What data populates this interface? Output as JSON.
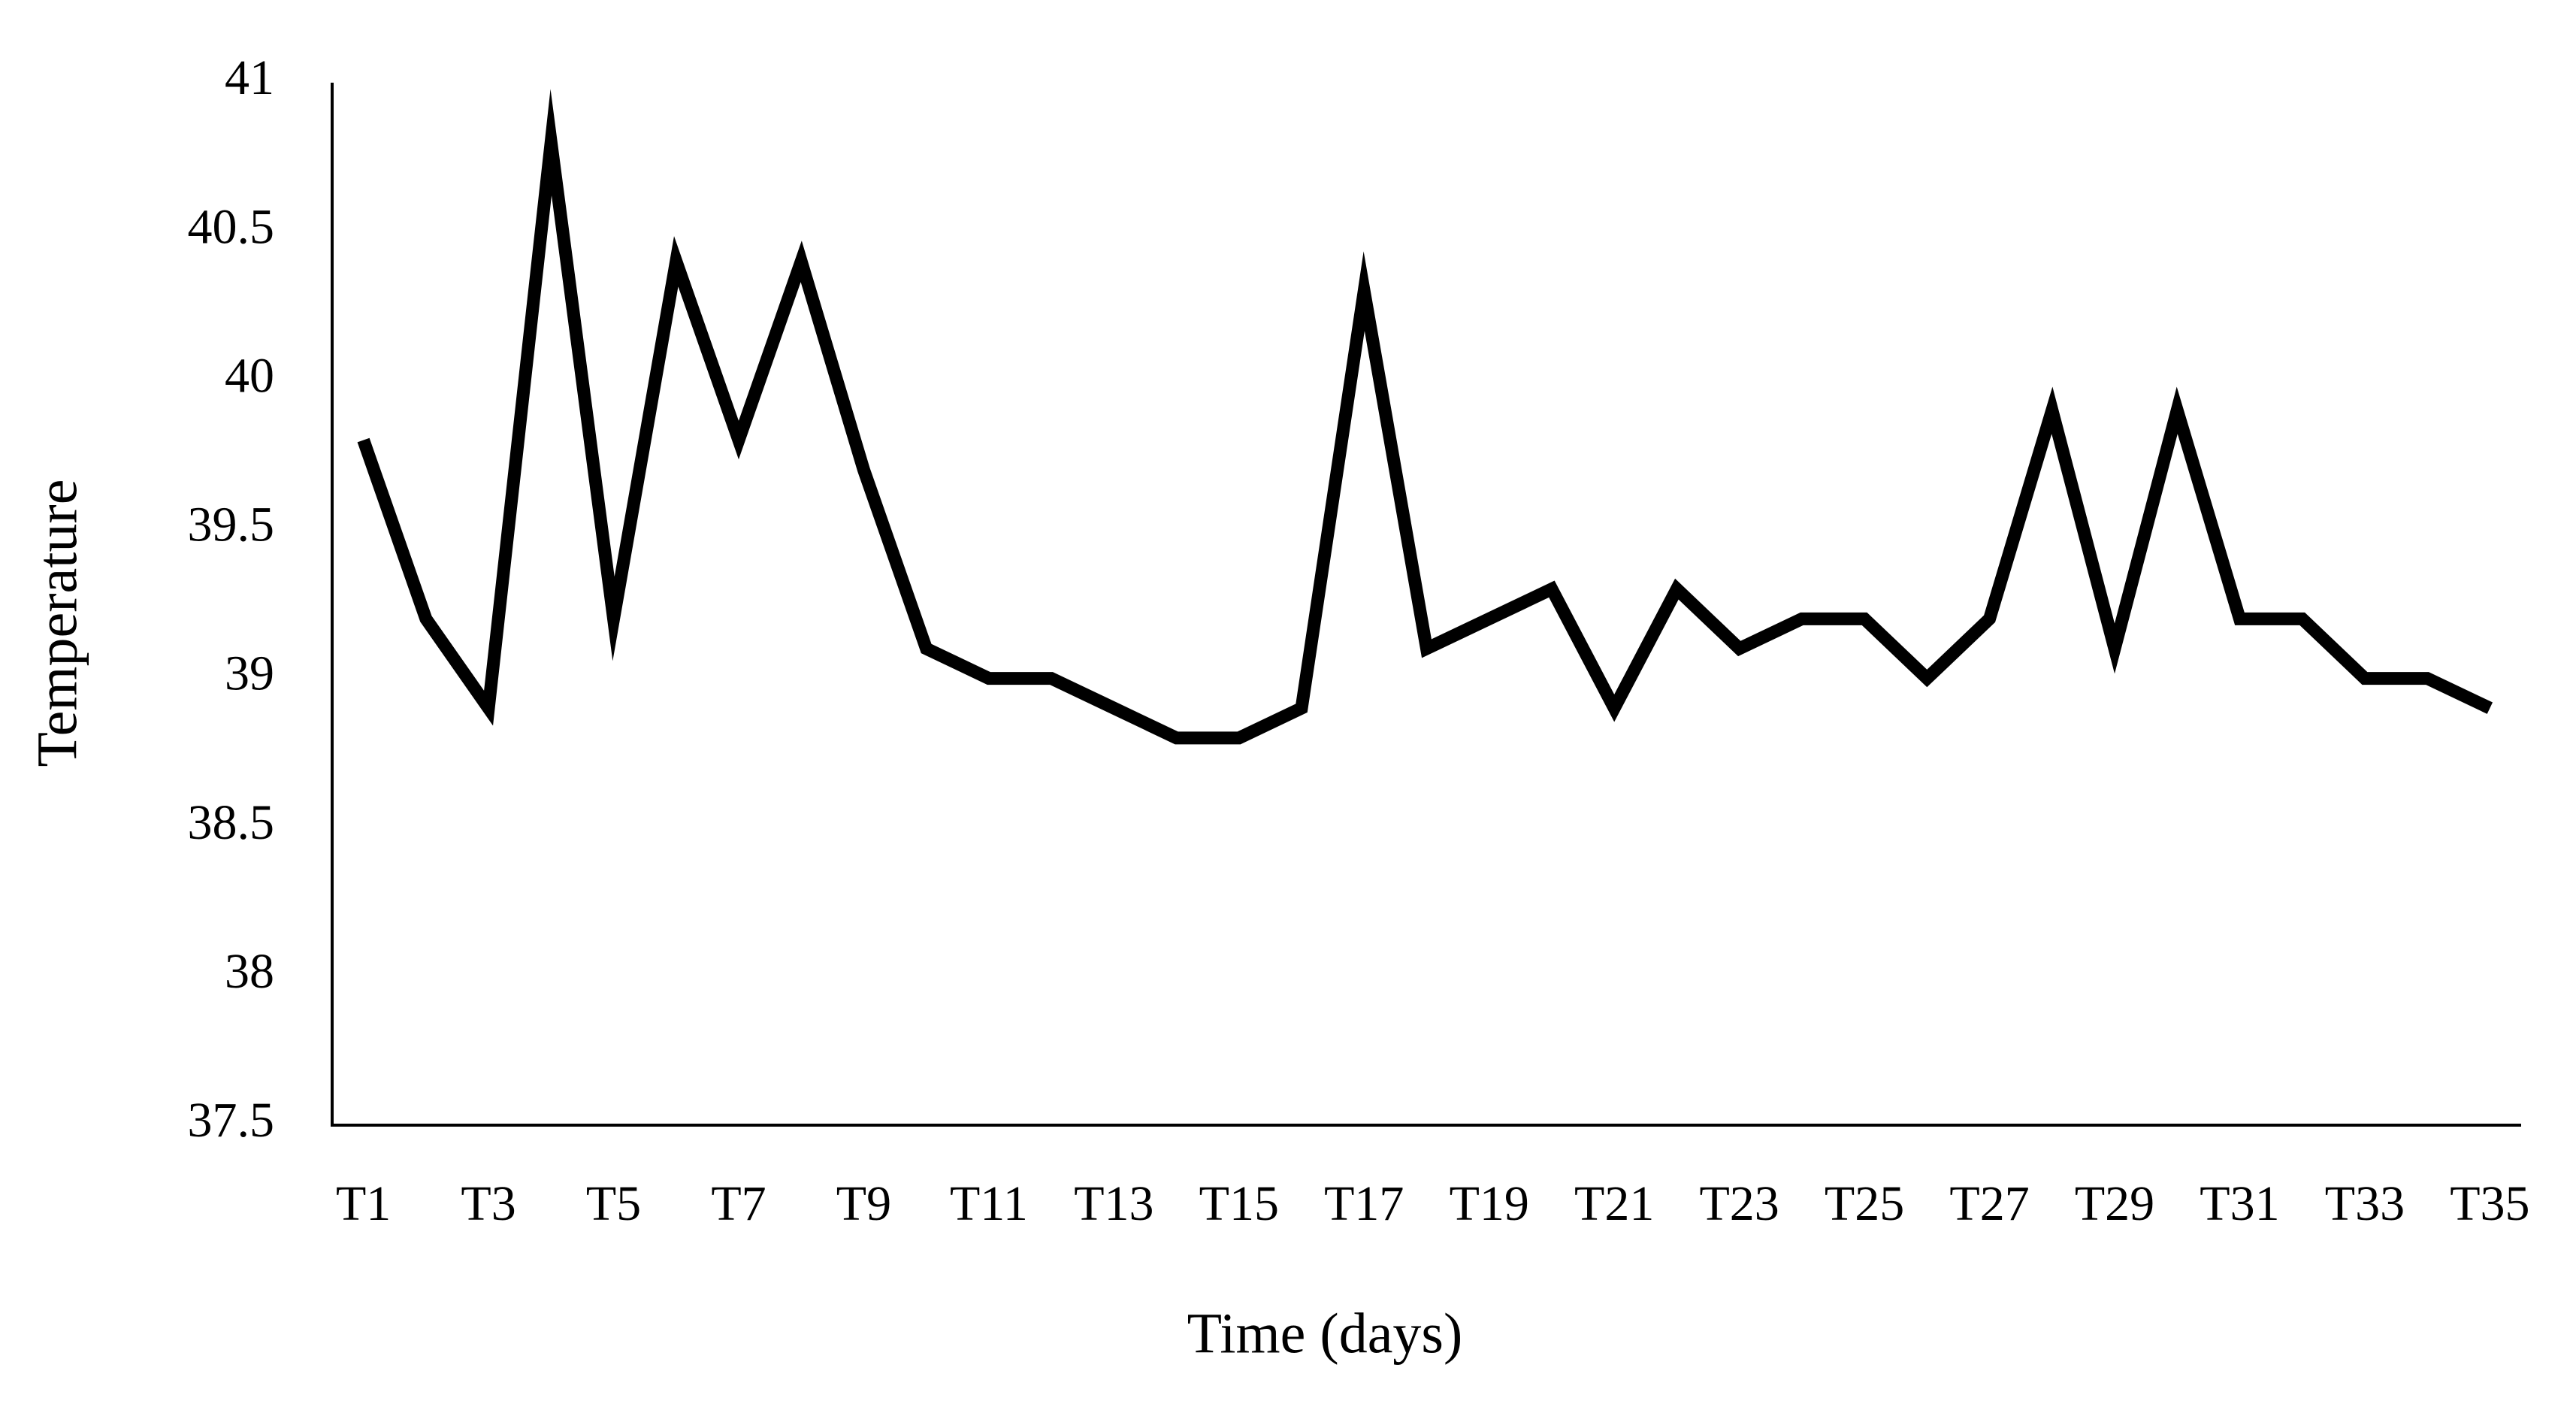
{
  "chart_data": {
    "type": "line",
    "x_label": "Time (days)",
    "y_label": "Temperature",
    "categories": [
      "T1",
      null,
      "T3",
      null,
      "T5",
      null,
      "T7",
      null,
      "T9",
      null,
      "T11",
      null,
      "T13",
      null,
      "T15",
      null,
      "T17",
      null,
      "T19",
      null,
      "T21",
      null,
      "T23",
      null,
      "T25",
      null,
      "T27",
      null,
      "T29",
      null,
      "T31",
      null,
      "T33",
      null,
      "T35"
    ],
    "values": [
      39.8,
      39.2,
      38.9,
      40.8,
      39.2,
      40.4,
      39.8,
      40.4,
      39.7,
      39.1,
      39.0,
      39.0,
      38.9,
      38.8,
      38.8,
      38.9,
      40.3,
      39.1,
      39.2,
      39.3,
      38.9,
      39.3,
      39.1,
      39.2,
      39.2,
      39.0,
      39.2,
      39.9,
      39.1,
      39.9,
      39.2,
      39.2,
      39.0,
      39.0,
      38.9
    ],
    "color": "#000000",
    "ylim": [
      37.5,
      41
    ],
    "yticks": [
      37.5,
      38,
      38.5,
      39,
      39.5,
      40,
      40.5,
      41
    ]
  }
}
